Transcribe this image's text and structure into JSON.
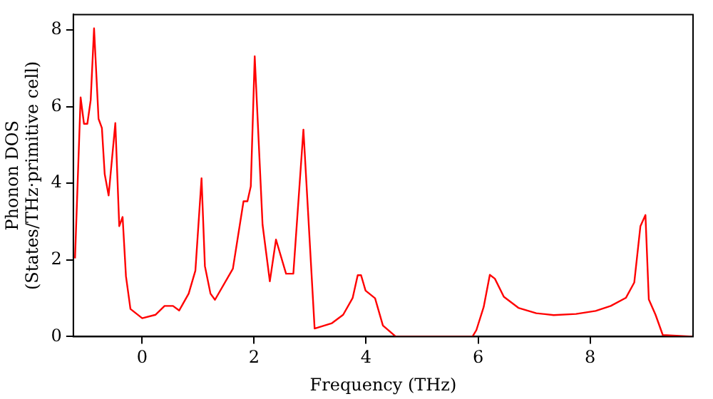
{
  "chart_data": {
    "type": "line",
    "xlabel": "Frequency (THz)",
    "ylabel": "Phonon DOS\n(States/THz·primitive cell)",
    "x": [
      -1.2,
      -1.1,
      -1.04,
      -0.98,
      -0.92,
      -0.86,
      -0.78,
      -0.72,
      -0.67,
      -0.6,
      -0.48,
      -0.41,
      -0.35,
      -0.29,
      -0.21,
      0.0,
      0.24,
      0.4,
      0.55,
      0.66,
      0.83,
      0.95,
      1.06,
      1.12,
      1.22,
      1.3,
      1.62,
      1.81,
      1.88,
      1.94,
      2.01,
      2.15,
      2.28,
      2.39,
      2.57,
      2.7,
      2.88,
      3.08,
      3.39,
      3.59,
      3.76,
      3.85,
      3.91,
      3.99,
      4.16,
      4.3,
      4.53,
      5.9,
      5.97,
      6.1,
      6.21,
      6.3,
      6.46,
      6.72,
      7.04,
      7.35,
      7.75,
      8.1,
      8.37,
      8.64,
      8.79,
      8.9,
      8.99,
      9.05,
      9.17,
      9.3,
      9.84
    ],
    "series": [
      {
        "color": "#ff0000",
        "values": [
          2.04,
          6.24,
          5.55,
          5.55,
          6.17,
          8.04,
          5.68,
          5.44,
          4.24,
          3.68,
          5.57,
          2.88,
          3.12,
          1.57,
          0.72,
          0.48,
          0.57,
          0.8,
          0.8,
          0.68,
          1.12,
          1.72,
          4.13,
          1.84,
          1.12,
          0.96,
          1.77,
          3.53,
          3.53,
          3.92,
          7.31,
          2.92,
          1.44,
          2.53,
          1.64,
          1.64,
          5.4,
          0.21,
          0.35,
          0.57,
          1.01,
          1.6,
          1.6,
          1.2,
          1.0,
          0.29,
          0,
          0,
          0.17,
          0.77,
          1.61,
          1.51,
          1.04,
          0.75,
          0.61,
          0.56,
          0.59,
          0.67,
          0.8,
          1.01,
          1.41,
          2.88,
          3.17,
          0.97,
          0.57,
          0.04,
          0
        ]
      }
    ],
    "xlim": [
      -1.23,
      9.84
    ],
    "ylim": [
      0,
      8.4
    ],
    "xticks": [
      0,
      2,
      4,
      6,
      8
    ],
    "yticks": [
      0,
      2,
      4,
      6,
      8
    ],
    "grid": false,
    "legend": false,
    "marker": "none",
    "line_style": "solid"
  }
}
